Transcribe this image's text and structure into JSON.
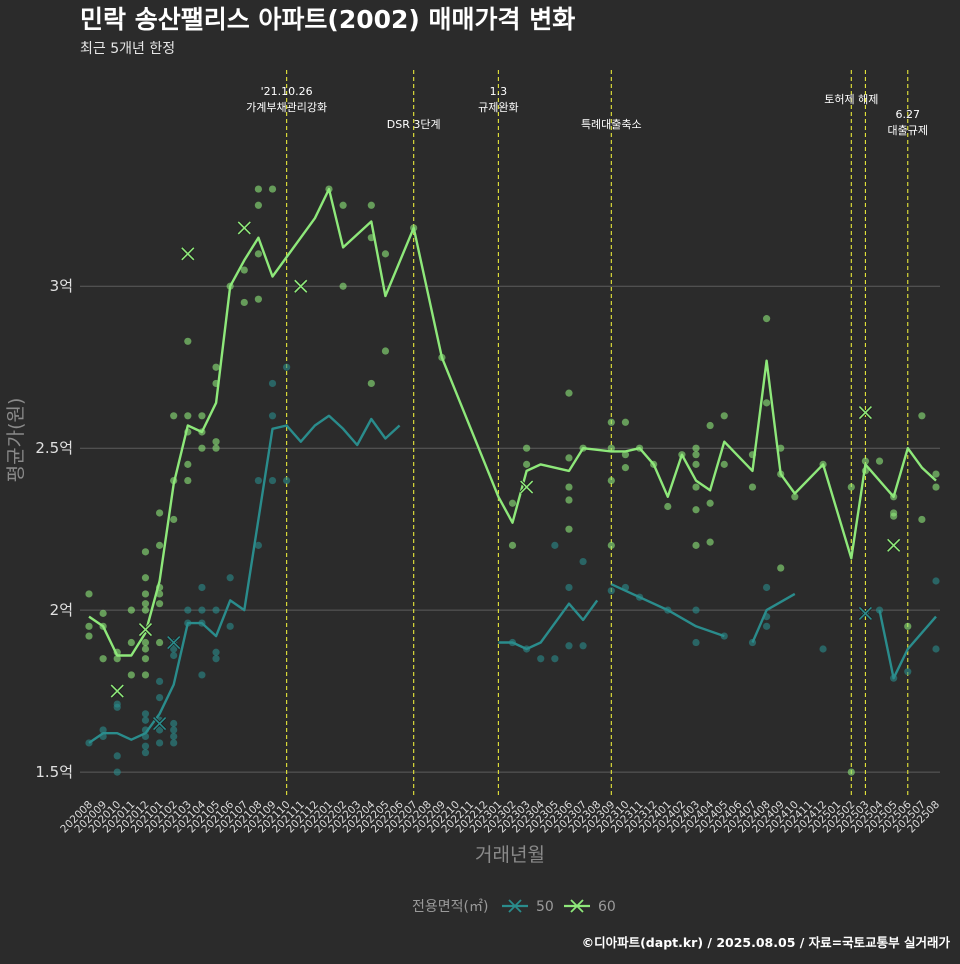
{
  "header": {
    "title": "민락 송산팰리스 아파트(2002) 매매가격 변화",
    "subtitle": "최근 5개년 한정"
  },
  "footer": {
    "credit": "©디아파트(dapt.kr) / 2025.08.05 / 자료=국토교통부 실거래가"
  },
  "legend": {
    "title": "전용면적(㎡)",
    "placement": "bottom"
  },
  "chart_data": {
    "type": "line",
    "xlabel": "거래년월",
    "ylabel": "평균가(원)",
    "ylim": [
      1.42,
      3.68
    ],
    "yticks": [
      {
        "value": 1.5,
        "label": "1.5억"
      },
      {
        "value": 2.0,
        "label": "2억"
      },
      {
        "value": 2.5,
        "label": "2.5억"
      },
      {
        "value": 3.0,
        "label": "3억"
      }
    ],
    "grid": "horizontal",
    "categories": [
      "202008",
      "202009",
      "202010",
      "202011",
      "202012",
      "202101",
      "202102",
      "202103",
      "202104",
      "202105",
      "202106",
      "202107",
      "202108",
      "202109",
      "202110",
      "202111",
      "202112",
      "202201",
      "202202",
      "202203",
      "202204",
      "202205",
      "202206",
      "202207",
      "202208",
      "202209",
      "202210",
      "202211",
      "202212",
      "202301",
      "202302",
      "202303",
      "202304",
      "202305",
      "202306",
      "202307",
      "202308",
      "202309",
      "202310",
      "202311",
      "202312",
      "202401",
      "202402",
      "202403",
      "202404",
      "202405",
      "202406",
      "202407",
      "202408",
      "202409",
      "202410",
      "202411",
      "202412",
      "202501",
      "202502",
      "202503",
      "202504",
      "202505",
      "202506",
      "202507",
      "202508"
    ],
    "series": [
      {
        "name": "50",
        "color": "#2a8c8c",
        "line_segments": [
          [
            [
              0,
              1.59
            ],
            [
              1,
              1.62
            ],
            [
              2,
              1.62
            ],
            [
              3,
              1.6
            ],
            [
              4,
              1.62
            ],
            [
              5,
              1.68
            ],
            [
              6,
              1.77
            ],
            [
              7,
              1.96
            ],
            [
              8,
              1.96
            ],
            [
              9,
              1.92
            ],
            [
              10,
              2.03
            ],
            [
              11,
              2.0
            ],
            [
              12,
              2.28
            ],
            [
              13,
              2.56
            ],
            [
              14,
              2.57
            ],
            [
              15,
              2.52
            ],
            [
              16,
              2.57
            ],
            [
              17,
              2.6
            ],
            [
              18,
              2.56
            ],
            [
              19,
              2.51
            ],
            [
              20,
              2.59
            ],
            [
              21,
              2.53
            ],
            [
              22,
              2.57
            ]
          ],
          [
            [
              29,
              1.9
            ],
            [
              30,
              1.9
            ],
            [
              31,
              1.88
            ],
            [
              32,
              1.9
            ],
            [
              34,
              2.02
            ],
            [
              35,
              1.97
            ],
            [
              36,
              2.03
            ]
          ],
          [
            [
              37,
              2.08
            ],
            [
              38,
              2.06
            ],
            [
              39,
              2.04
            ],
            [
              41,
              2.0
            ],
            [
              43,
              1.95
            ],
            [
              45,
              1.92
            ]
          ],
          [
            [
              47,
              1.9
            ],
            [
              48,
              2.0
            ],
            [
              50,
              2.05
            ]
          ],
          [
            [
              56,
              2.0
            ],
            [
              57,
              1.79
            ],
            [
              58,
              1.88
            ],
            [
              60,
              1.98
            ]
          ]
        ],
        "points": [
          [
            0,
            1.59
          ],
          [
            1,
            1.61
          ],
          [
            1,
            1.63
          ],
          [
            2,
            1.5
          ],
          [
            2,
            1.55
          ],
          [
            2,
            1.7
          ],
          [
            2,
            1.71
          ],
          [
            4,
            1.56
          ],
          [
            4,
            1.58
          ],
          [
            4,
            1.61
          ],
          [
            4,
            1.63
          ],
          [
            4,
            1.66
          ],
          [
            4,
            1.68
          ],
          [
            5,
            1.59
          ],
          [
            5,
            1.63
          ],
          [
            5,
            1.66
          ],
          [
            5,
            1.73
          ],
          [
            5,
            1.78
          ],
          [
            6,
            1.59
          ],
          [
            6,
            1.61
          ],
          [
            6,
            1.63
          ],
          [
            6,
            1.65
          ],
          [
            6,
            1.86
          ],
          [
            6,
            1.88
          ],
          [
            6,
            1.9
          ],
          [
            7,
            1.96
          ],
          [
            7,
            2.0
          ],
          [
            8,
            1.8
          ],
          [
            8,
            1.96
          ],
          [
            8,
            2.0
          ],
          [
            8,
            2.07
          ],
          [
            9,
            1.85
          ],
          [
            9,
            1.87
          ],
          [
            9,
            2.0
          ],
          [
            10,
            1.95
          ],
          [
            10,
            2.1
          ],
          [
            12,
            2.2
          ],
          [
            12,
            2.4
          ],
          [
            13,
            2.4
          ],
          [
            13,
            2.6
          ],
          [
            13,
            2.7
          ],
          [
            14,
            2.4
          ],
          [
            14,
            2.75
          ],
          [
            30,
            1.9
          ],
          [
            31,
            1.88
          ],
          [
            32,
            1.85
          ],
          [
            33,
            1.85
          ],
          [
            33,
            2.2
          ],
          [
            34,
            1.89
          ],
          [
            34,
            2.07
          ],
          [
            35,
            1.89
          ],
          [
            35,
            2.15
          ],
          [
            37,
            2.06
          ],
          [
            38,
            2.07
          ],
          [
            39,
            2.04
          ],
          [
            41,
            2.0
          ],
          [
            43,
            1.9
          ],
          [
            43,
            2.0
          ],
          [
            45,
            1.92
          ],
          [
            47,
            1.9
          ],
          [
            48,
            1.95
          ],
          [
            48,
            1.98
          ],
          [
            48,
            2.07
          ],
          [
            52,
            1.88
          ],
          [
            55,
            1.99
          ],
          [
            56,
            2.0
          ],
          [
            57,
            1.79
          ],
          [
            58,
            1.81
          ],
          [
            60,
            1.88
          ],
          [
            60,
            2.09
          ]
        ],
        "x_markers": [
          [
            5,
            1.65
          ],
          [
            6,
            1.9
          ],
          [
            55,
            1.99
          ]
        ]
      },
      {
        "name": "60",
        "color": "#8ee87a",
        "line_segments": [
          [
            [
              0,
              1.98
            ],
            [
              1,
              1.95
            ],
            [
              2,
              1.86
            ],
            [
              3,
              1.86
            ],
            [
              4,
              1.93
            ],
            [
              5,
              2.09
            ],
            [
              6,
              2.39
            ],
            [
              7,
              2.57
            ],
            [
              8,
              2.55
            ],
            [
              9,
              2.64
            ],
            [
              10,
              3.0
            ],
            [
              11,
              3.08
            ],
            [
              12,
              3.15
            ],
            [
              13,
              3.03
            ],
            [
              16,
              3.21
            ],
            [
              17,
              3.3
            ],
            [
              18,
              3.12
            ],
            [
              20,
              3.2
            ],
            [
              21,
              2.97
            ],
            [
              23,
              3.18
            ],
            [
              25,
              2.78
            ],
            [
              29,
              2.35
            ],
            [
              30,
              2.27
            ],
            [
              31,
              2.43
            ],
            [
              32,
              2.45
            ],
            [
              34,
              2.43
            ],
            [
              35,
              2.5
            ],
            [
              37,
              2.49
            ],
            [
              38,
              2.49
            ],
            [
              39,
              2.5
            ],
            [
              40,
              2.45
            ],
            [
              41,
              2.35
            ],
            [
              42,
              2.48
            ],
            [
              43,
              2.4
            ],
            [
              44,
              2.37
            ],
            [
              45,
              2.52
            ],
            [
              47,
              2.43
            ],
            [
              48,
              2.77
            ],
            [
              49,
              2.42
            ],
            [
              50,
              2.36
            ],
            [
              52,
              2.45
            ],
            [
              54,
              2.16
            ],
            [
              55,
              2.45
            ],
            [
              57,
              2.35
            ],
            [
              58,
              2.5
            ],
            [
              59,
              2.44
            ],
            [
              60,
              2.4
            ]
          ]
        ],
        "points": [
          [
            0,
            1.92
          ],
          [
            0,
            1.95
          ],
          [
            0,
            2.05
          ],
          [
            1,
            1.85
          ],
          [
            1,
            1.95
          ],
          [
            1,
            1.99
          ],
          [
            2,
            1.85
          ],
          [
            2,
            1.87
          ],
          [
            3,
            1.8
          ],
          [
            3,
            1.9
          ],
          [
            3,
            2.0
          ],
          [
            4,
            1.8
          ],
          [
            4,
            1.85
          ],
          [
            4,
            1.88
          ],
          [
            4,
            1.9
          ],
          [
            4,
            2.0
          ],
          [
            4,
            2.02
          ],
          [
            4,
            2.05
          ],
          [
            4,
            2.1
          ],
          [
            4,
            2.18
          ],
          [
            5,
            1.9
          ],
          [
            5,
            2.02
          ],
          [
            5,
            2.05
          ],
          [
            5,
            2.07
          ],
          [
            5,
            2.2
          ],
          [
            5,
            2.3
          ],
          [
            6,
            2.28
          ],
          [
            6,
            2.4
          ],
          [
            6,
            2.6
          ],
          [
            7,
            2.4
          ],
          [
            7,
            2.45
          ],
          [
            7,
            2.55
          ],
          [
            7,
            2.6
          ],
          [
            7,
            2.83
          ],
          [
            8,
            2.5
          ],
          [
            8,
            2.55
          ],
          [
            8,
            2.6
          ],
          [
            9,
            2.5
          ],
          [
            9,
            2.52
          ],
          [
            9,
            2.7
          ],
          [
            9,
            2.75
          ],
          [
            10,
            3.0
          ],
          [
            11,
            2.95
          ],
          [
            11,
            3.05
          ],
          [
            12,
            2.96
          ],
          [
            12,
            3.1
          ],
          [
            12,
            3.25
          ],
          [
            12,
            3.3
          ],
          [
            13,
            3.3
          ],
          [
            17,
            3.3
          ],
          [
            18,
            3.0
          ],
          [
            18,
            3.25
          ],
          [
            20,
            2.7
          ],
          [
            20,
            3.15
          ],
          [
            20,
            3.25
          ],
          [
            21,
            2.8
          ],
          [
            21,
            3.1
          ],
          [
            23,
            3.18
          ],
          [
            25,
            2.78
          ],
          [
            30,
            2.2
          ],
          [
            30,
            2.33
          ],
          [
            31,
            2.45
          ],
          [
            31,
            2.5
          ],
          [
            34,
            2.25
          ],
          [
            34,
            2.34
          ],
          [
            34,
            2.38
          ],
          [
            34,
            2.47
          ],
          [
            34,
            2.67
          ],
          [
            35,
            2.5
          ],
          [
            37,
            2.2
          ],
          [
            37,
            2.4
          ],
          [
            37,
            2.5
          ],
          [
            37,
            2.58
          ],
          [
            38,
            2.44
          ],
          [
            38,
            2.48
          ],
          [
            38,
            2.58
          ],
          [
            39,
            2.5
          ],
          [
            40,
            2.45
          ],
          [
            41,
            2.32
          ],
          [
            42,
            2.48
          ],
          [
            43,
            2.2
          ],
          [
            43,
            2.31
          ],
          [
            43,
            2.38
          ],
          [
            43,
            2.45
          ],
          [
            43,
            2.48
          ],
          [
            43,
            2.5
          ],
          [
            44,
            2.21
          ],
          [
            44,
            2.33
          ],
          [
            44,
            2.57
          ],
          [
            45,
            2.45
          ],
          [
            45,
            2.6
          ],
          [
            47,
            2.38
          ],
          [
            47,
            2.48
          ],
          [
            48,
            2.64
          ],
          [
            48,
            2.9
          ],
          [
            49,
            2.13
          ],
          [
            49,
            2.42
          ],
          [
            49,
            2.5
          ],
          [
            50,
            2.35
          ],
          [
            52,
            2.45
          ],
          [
            54,
            2.38
          ],
          [
            54,
            1.5
          ],
          [
            55,
            2.43
          ],
          [
            55,
            2.46
          ],
          [
            56,
            2.46
          ],
          [
            57,
            2.29
          ],
          [
            57,
            2.3
          ],
          [
            57,
            2.35
          ],
          [
            58,
            1.95
          ],
          [
            59,
            2.28
          ],
          [
            59,
            2.6
          ],
          [
            60,
            2.38
          ],
          [
            60,
            2.42
          ]
        ],
        "x_markers": [
          [
            2,
            1.75
          ],
          [
            4,
            1.94
          ],
          [
            7,
            3.1
          ],
          [
            11,
            3.18
          ],
          [
            15,
            3.0
          ],
          [
            31,
            2.38
          ],
          [
            55,
            2.61
          ],
          [
            57,
            2.2
          ]
        ]
      }
    ],
    "events": [
      {
        "x": 14,
        "lines": [
          "'21.10.26",
          "가계부채관리강화"
        ],
        "y_row": 1
      },
      {
        "x": 23,
        "lines": [
          "DSR 3단계"
        ],
        "y_row": 2
      },
      {
        "x": 29,
        "lines": [
          "1.3",
          "규제완화"
        ],
        "y_row": 1
      },
      {
        "x": 37,
        "lines": [
          "특례대출축소"
        ],
        "y_row": 2
      },
      {
        "x": 54,
        "lines": [
          "토허제 해제"
        ],
        "y_row": 1.5
      },
      {
        "x": 55,
        "lines": [],
        "y_row": 1
      },
      {
        "x": 58,
        "lines": [
          "6.27",
          "대출규제"
        ],
        "y_row": 2.3
      }
    ]
  }
}
